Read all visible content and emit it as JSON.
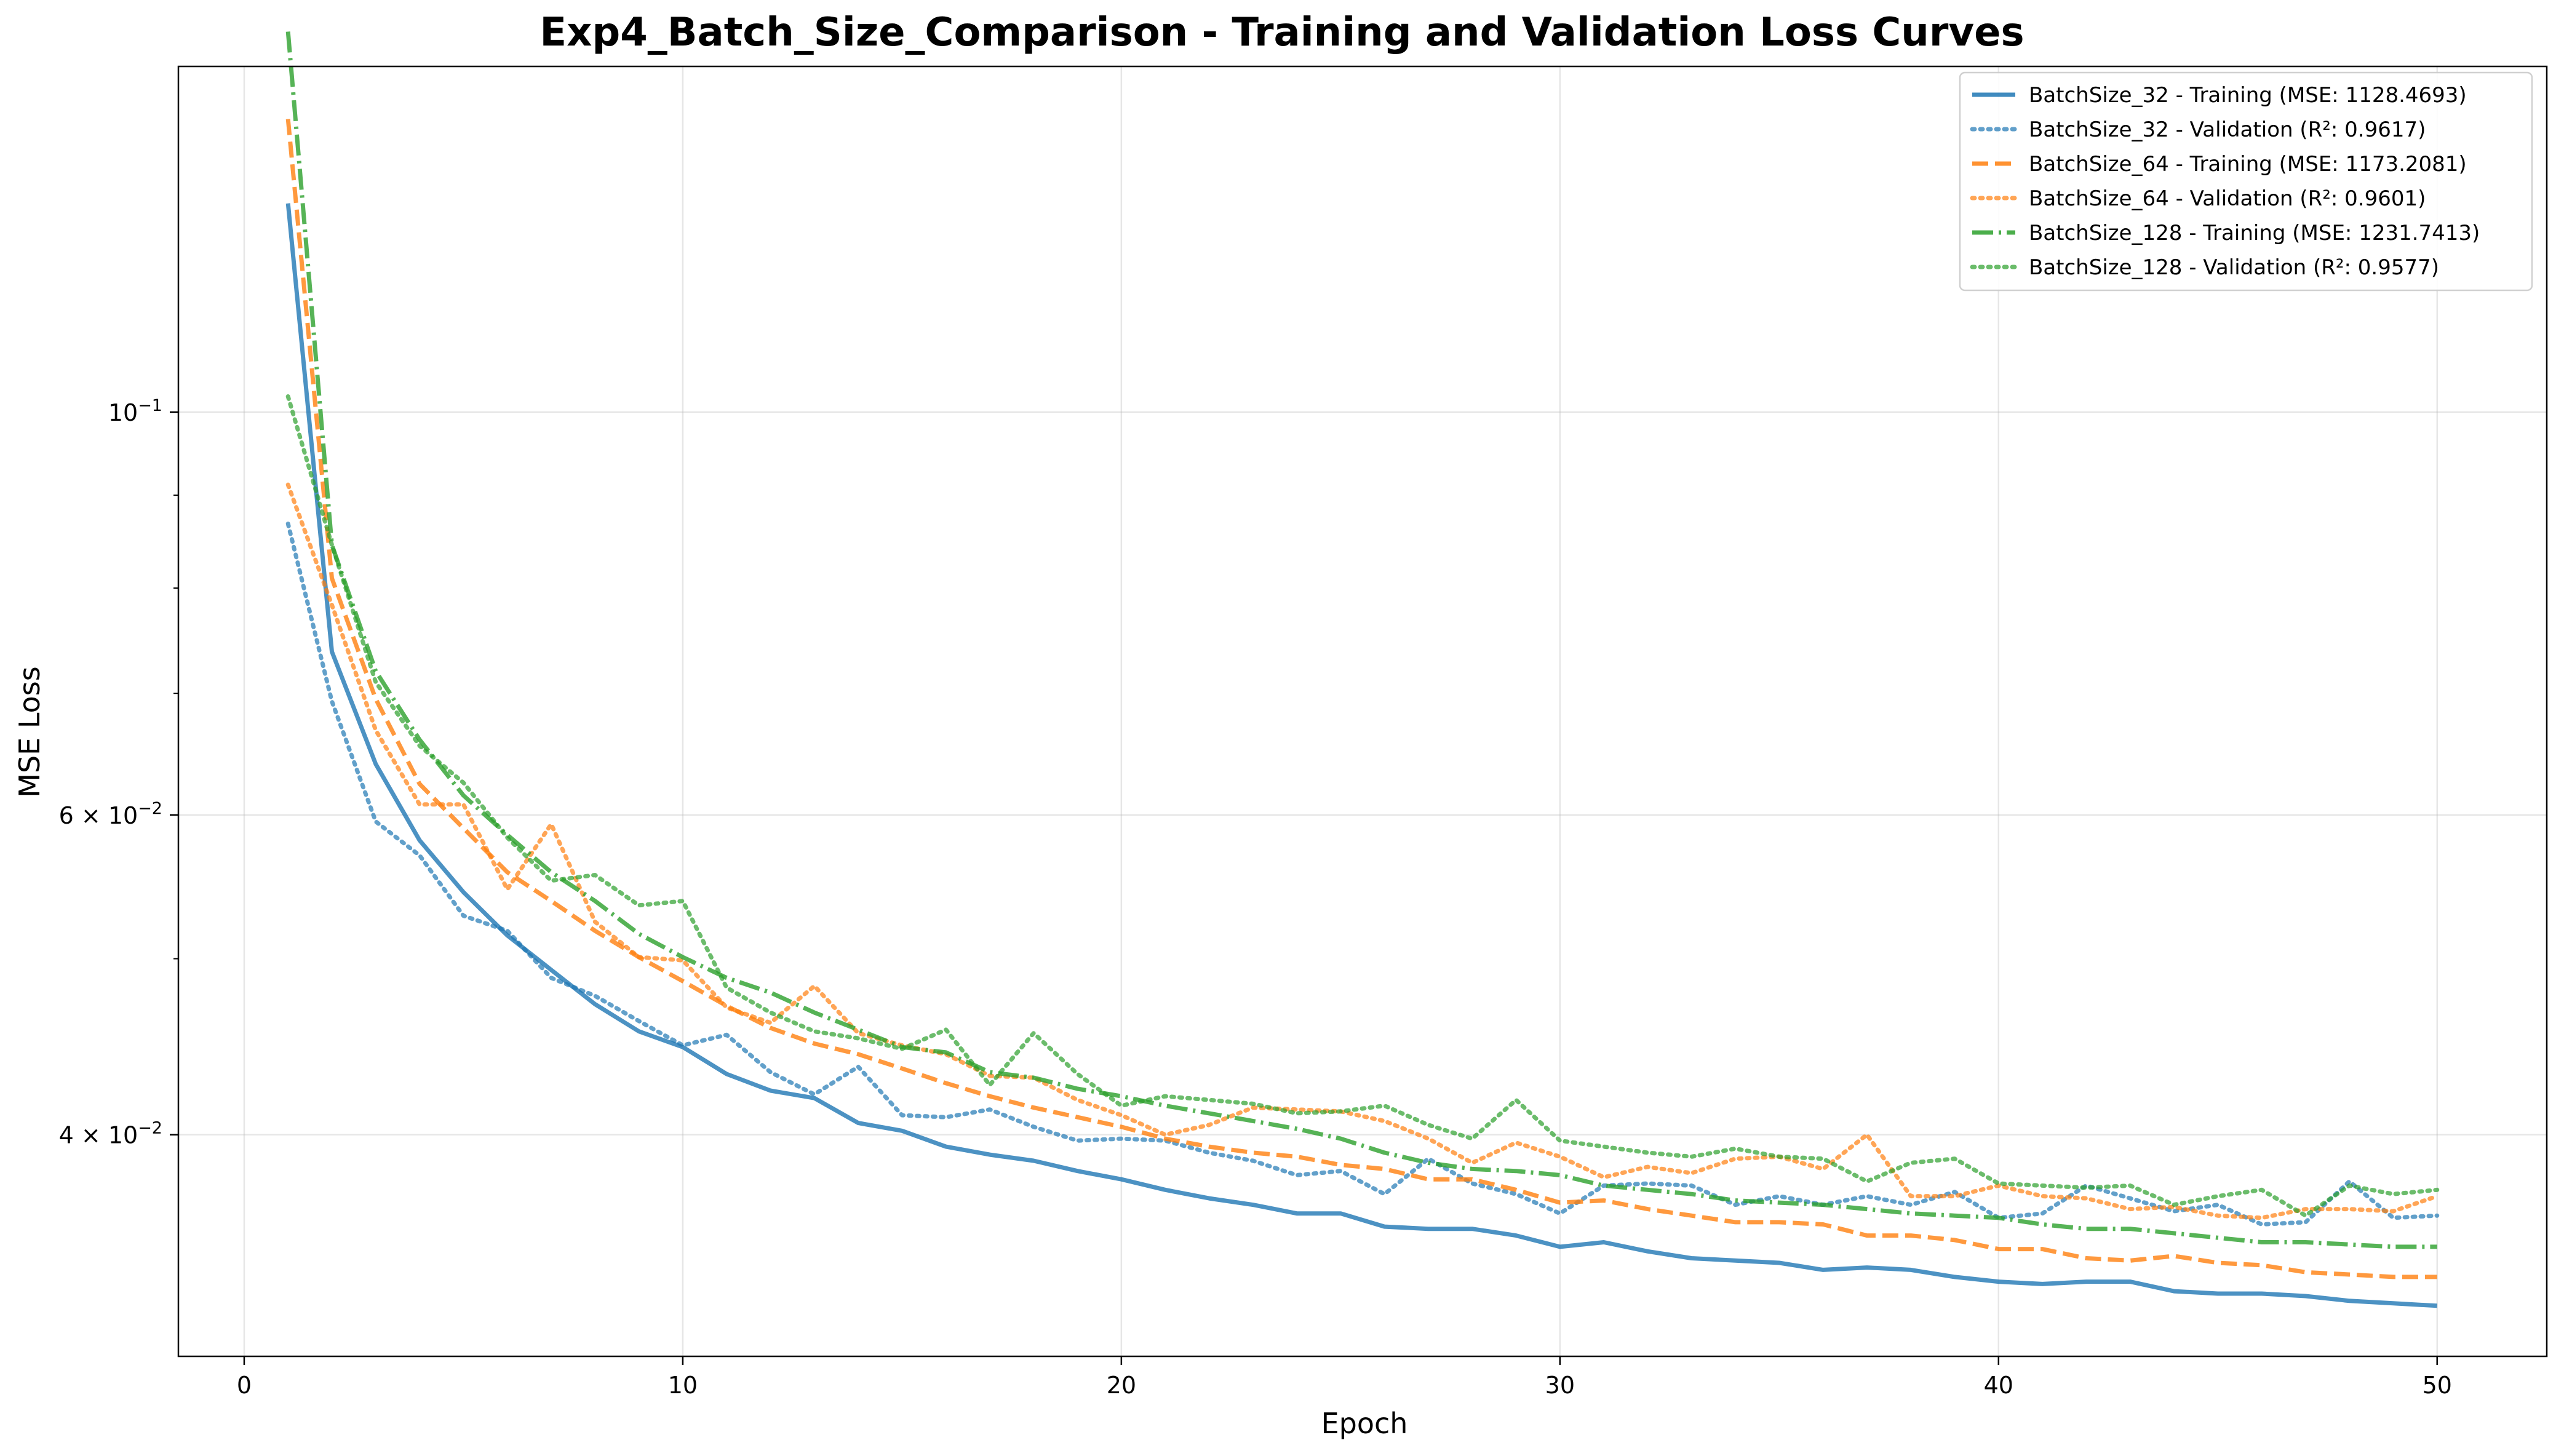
{
  "chart_data": {
    "type": "line",
    "title": "Exp4_Batch_Size_Comparison - Training and Validation Loss Curves",
    "xlabel": "Epoch",
    "ylabel": "MSE Loss",
    "yscale": "log",
    "xlim": [
      -1.5,
      52.5
    ],
    "ylim": [
      0.0302,
      0.155
    ],
    "grid": true,
    "legend_position": "top-right",
    "xticks": [
      0,
      10,
      20,
      30,
      40,
      50
    ],
    "xtick_labels": [
      "0",
      "10",
      "20",
      "30",
      "40",
      "50"
    ],
    "yticks": [
      0.1,
      0.06,
      0.04
    ],
    "ytick_labels": [
      {
        "base": "10",
        "exp": "−1"
      },
      {
        "base": "6 × 10",
        "exp": "−2"
      },
      {
        "base": "4 × 10",
        "exp": "−2"
      }
    ],
    "x": [
      1,
      2,
      3,
      4,
      5,
      6,
      7,
      8,
      9,
      10,
      11,
      12,
      13,
      14,
      15,
      16,
      17,
      18,
      19,
      20,
      21,
      22,
      23,
      24,
      25,
      26,
      27,
      28,
      29,
      30,
      31,
      32,
      33,
      34,
      35,
      36,
      37,
      38,
      39,
      40,
      41,
      42,
      43,
      44,
      45,
      46,
      47,
      48,
      49,
      50
    ],
    "series": [
      {
        "name": "BatchSize_32 - Training (MSE: 1128.4693)",
        "color": "#1f77b4",
        "style": "solid",
        "values": [
          0.1303,
          0.0738,
          0.064,
          0.0581,
          0.0544,
          0.0515,
          0.0493,
          0.0472,
          0.0456,
          0.0447,
          0.0432,
          0.0423,
          0.0419,
          0.0406,
          0.0402,
          0.0394,
          0.039,
          0.0387,
          0.0382,
          0.0378,
          0.0373,
          0.0369,
          0.0366,
          0.0362,
          0.0362,
          0.0356,
          0.0355,
          0.0355,
          0.0352,
          0.0347,
          0.0349,
          0.0345,
          0.0342,
          0.0341,
          0.034,
          0.0337,
          0.0338,
          0.0337,
          0.0334,
          0.0332,
          0.0331,
          0.0332,
          0.0332,
          0.0328,
          0.0327,
          0.0327,
          0.0326,
          0.0324,
          0.0323,
          0.0322
        ]
      },
      {
        "name": "BatchSize_32 - Validation (R²: 0.9617)",
        "color": "#1f77b4",
        "style": "dotted",
        "values": [
          0.0868,
          0.0693,
          0.0595,
          0.057,
          0.0528,
          0.0518,
          0.0488,
          0.0477,
          0.0462,
          0.0448,
          0.0454,
          0.0433,
          0.0421,
          0.0436,
          0.041,
          0.0409,
          0.0413,
          0.0404,
          0.0397,
          0.0398,
          0.0397,
          0.0391,
          0.0387,
          0.038,
          0.0382,
          0.0371,
          0.0388,
          0.0376,
          0.0371,
          0.0362,
          0.0375,
          0.0376,
          0.0375,
          0.0366,
          0.037,
          0.0366,
          0.037,
          0.0366,
          0.0372,
          0.036,
          0.0362,
          0.0375,
          0.0369,
          0.0363,
          0.0366,
          0.0357,
          0.0358,
          0.0377,
          0.036,
          0.0361
        ]
      },
      {
        "name": "BatchSize_64 - Training (MSE: 1173.2081)",
        "color": "#ff7f0e",
        "style": "dashed",
        "values": [
          0.145,
          0.081,
          0.0695,
          0.0624,
          0.059,
          0.0558,
          0.0538,
          0.0518,
          0.0501,
          0.0486,
          0.0471,
          0.0458,
          0.0449,
          0.0443,
          0.0435,
          0.0427,
          0.042,
          0.0414,
          0.0409,
          0.0404,
          0.0398,
          0.0394,
          0.0391,
          0.0389,
          0.0385,
          0.0383,
          0.0378,
          0.0378,
          0.0373,
          0.0367,
          0.0368,
          0.0364,
          0.0361,
          0.0358,
          0.0358,
          0.0357,
          0.0352,
          0.0352,
          0.035,
          0.0346,
          0.0346,
          0.0342,
          0.0341,
          0.0343,
          0.034,
          0.0339,
          0.0336,
          0.0335,
          0.0334,
          0.0334
        ]
      },
      {
        "name": "BatchSize_64 - Validation (R²: 0.9601)",
        "color": "#ff7f0e",
        "style": "dotted",
        "values": [
          0.0912,
          0.0783,
          0.0668,
          0.0608,
          0.0608,
          0.0546,
          0.0593,
          0.0524,
          0.0501,
          0.0499,
          0.047,
          0.0461,
          0.0483,
          0.0455,
          0.0448,
          0.0443,
          0.0431,
          0.043,
          0.0418,
          0.041,
          0.04,
          0.0405,
          0.0414,
          0.0413,
          0.0412,
          0.0407,
          0.0398,
          0.0386,
          0.0396,
          0.0389,
          0.0379,
          0.0384,
          0.0381,
          0.0388,
          0.0389,
          0.0383,
          0.04,
          0.037,
          0.037,
          0.0375,
          0.037,
          0.0369,
          0.0364,
          0.0365,
          0.0361,
          0.036,
          0.0364,
          0.0364,
          0.0363,
          0.037
        ]
      },
      {
        "name": "BatchSize_128 - Training (MSE: 1231.7413)",
        "color": "#2ca02c",
        "style": "dashdot",
        "values": [
          0.162,
          0.0845,
          0.072,
          0.066,
          0.0615,
          0.0585,
          0.0558,
          0.0538,
          0.0516,
          0.0501,
          0.0488,
          0.0479,
          0.0467,
          0.0457,
          0.0447,
          0.0444,
          0.0433,
          0.043,
          0.0424,
          0.042,
          0.0415,
          0.0411,
          0.0407,
          0.0403,
          0.0398,
          0.0391,
          0.0386,
          0.0383,
          0.0382,
          0.038,
          0.0375,
          0.0373,
          0.0371,
          0.0368,
          0.0367,
          0.0366,
          0.0364,
          0.0362,
          0.0361,
          0.036,
          0.0357,
          0.0355,
          0.0355,
          0.0353,
          0.0351,
          0.0349,
          0.0349,
          0.0348,
          0.0347,
          0.0347
        ]
      },
      {
        "name": "BatchSize_128 - Validation (R²: 0.9577)",
        "color": "#2ca02c",
        "style": "dotted",
        "values": [
          0.102,
          0.0845,
          0.071,
          0.0655,
          0.0625,
          0.0583,
          0.0552,
          0.0556,
          0.0535,
          0.0538,
          0.0482,
          0.0467,
          0.0456,
          0.0452,
          0.0446,
          0.0457,
          0.0426,
          0.0455,
          0.0432,
          0.0415,
          0.042,
          0.0418,
          0.0416,
          0.0411,
          0.0412,
          0.0415,
          0.0405,
          0.0398,
          0.0418,
          0.0397,
          0.0394,
          0.0391,
          0.0389,
          0.0393,
          0.0389,
          0.0388,
          0.0377,
          0.0386,
          0.0388,
          0.0376,
          0.0375,
          0.0374,
          0.0375,
          0.0366,
          0.037,
          0.0373,
          0.0361,
          0.0375,
          0.0371,
          0.0373
        ]
      }
    ]
  }
}
